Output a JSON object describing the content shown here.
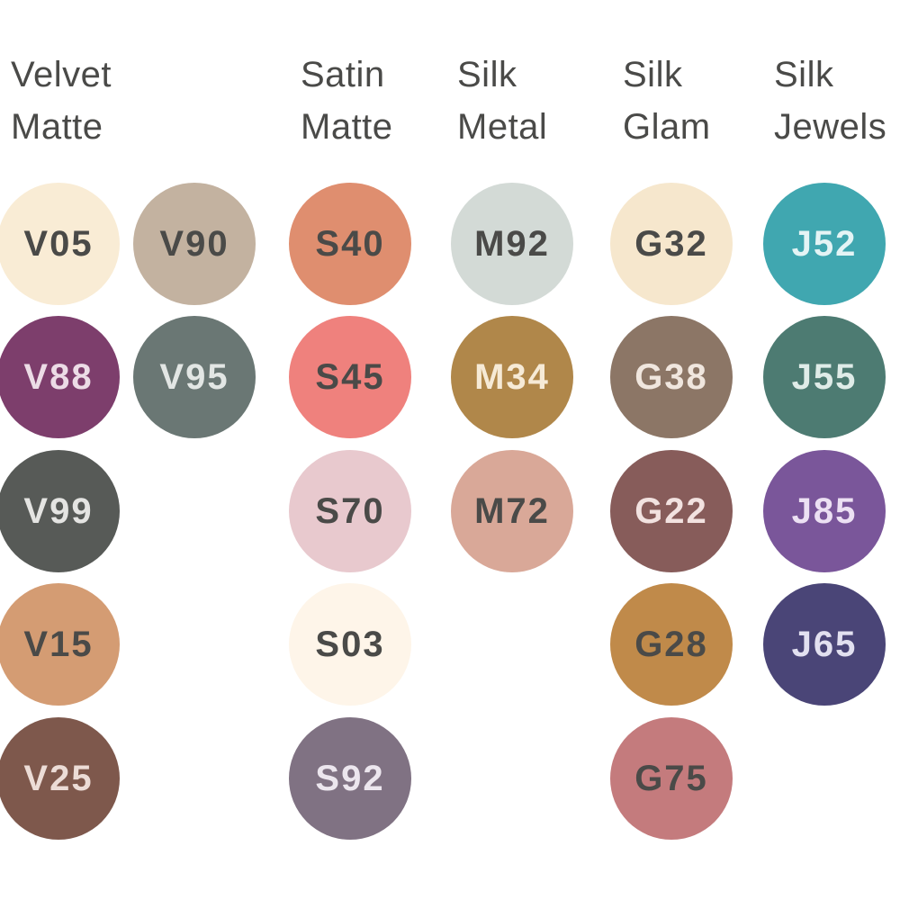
{
  "groups": [
    {
      "title_line1": "Velvet",
      "title_line2": "Matte",
      "shades": [
        {
          "code": "V05",
          "color": "#f9ecd5",
          "text_color": "#4a4a48"
        },
        {
          "code": "V90",
          "color": "#c3b2a0",
          "text_color": "#4a4a48"
        },
        {
          "code": "V88",
          "color": "#7d3e6c",
          "text_color": "#ecdce6"
        },
        {
          "code": "V95",
          "color": "#6a7774",
          "text_color": "#e2e6e4"
        },
        {
          "code": "V99",
          "color": "#575a57",
          "text_color": "#e4e4e2"
        },
        {
          "code": "V15",
          "color": "#d49c73",
          "text_color": "#4a4a48"
        },
        {
          "code": "V25",
          "color": "#7e584c",
          "text_color": "#ecdcd6"
        }
      ]
    },
    {
      "title_line1": "Satin",
      "title_line2": "Matte",
      "shades": [
        {
          "code": "S40",
          "color": "#df8e6f",
          "text_color": "#4a4a48"
        },
        {
          "code": "S45",
          "color": "#ef817d",
          "text_color": "#4a4a48"
        },
        {
          "code": "S70",
          "color": "#e8c9ce",
          "text_color": "#4a4a48"
        },
        {
          "code": "S03",
          "color": "#fef5e9",
          "text_color": "#4a4a48"
        },
        {
          "code": "S92",
          "color": "#807283",
          "text_color": "#ece6ee"
        }
      ]
    },
    {
      "title_line1": "Silk",
      "title_line2": "Metal",
      "shades": [
        {
          "code": "M92",
          "color": "#d3dad6",
          "text_color": "#4a4a48"
        },
        {
          "code": "M34",
          "color": "#b0874a",
          "text_color": "#f6ead6"
        },
        {
          "code": "M72",
          "color": "#d9a898",
          "text_color": "#4a4a48"
        }
      ]
    },
    {
      "title_line1": "Silk",
      "title_line2": "Glam",
      "shades": [
        {
          "code": "G32",
          "color": "#f6e7cd",
          "text_color": "#4a4a48"
        },
        {
          "code": "G38",
          "color": "#8c7666",
          "text_color": "#f0e6de"
        },
        {
          "code": "G22",
          "color": "#875c5a",
          "text_color": "#f2e2e0"
        },
        {
          "code": "G28",
          "color": "#c08a4a",
          "text_color": "#4a4a48"
        },
        {
          "code": "G75",
          "color": "#c47b7d",
          "text_color": "#4a4a48"
        }
      ]
    },
    {
      "title_line1": "Silk",
      "title_line2": "Jewels",
      "shades": [
        {
          "code": "J52",
          "color": "#40a7b0",
          "text_color": "#e4f4f5"
        },
        {
          "code": "J55",
          "color": "#4d7b72",
          "text_color": "#dfece8"
        },
        {
          "code": "J85",
          "color": "#7a569a",
          "text_color": "#ece0f3"
        },
        {
          "code": "J65",
          "color": "#4a4577",
          "text_color": "#e2e0f0"
        }
      ]
    }
  ]
}
